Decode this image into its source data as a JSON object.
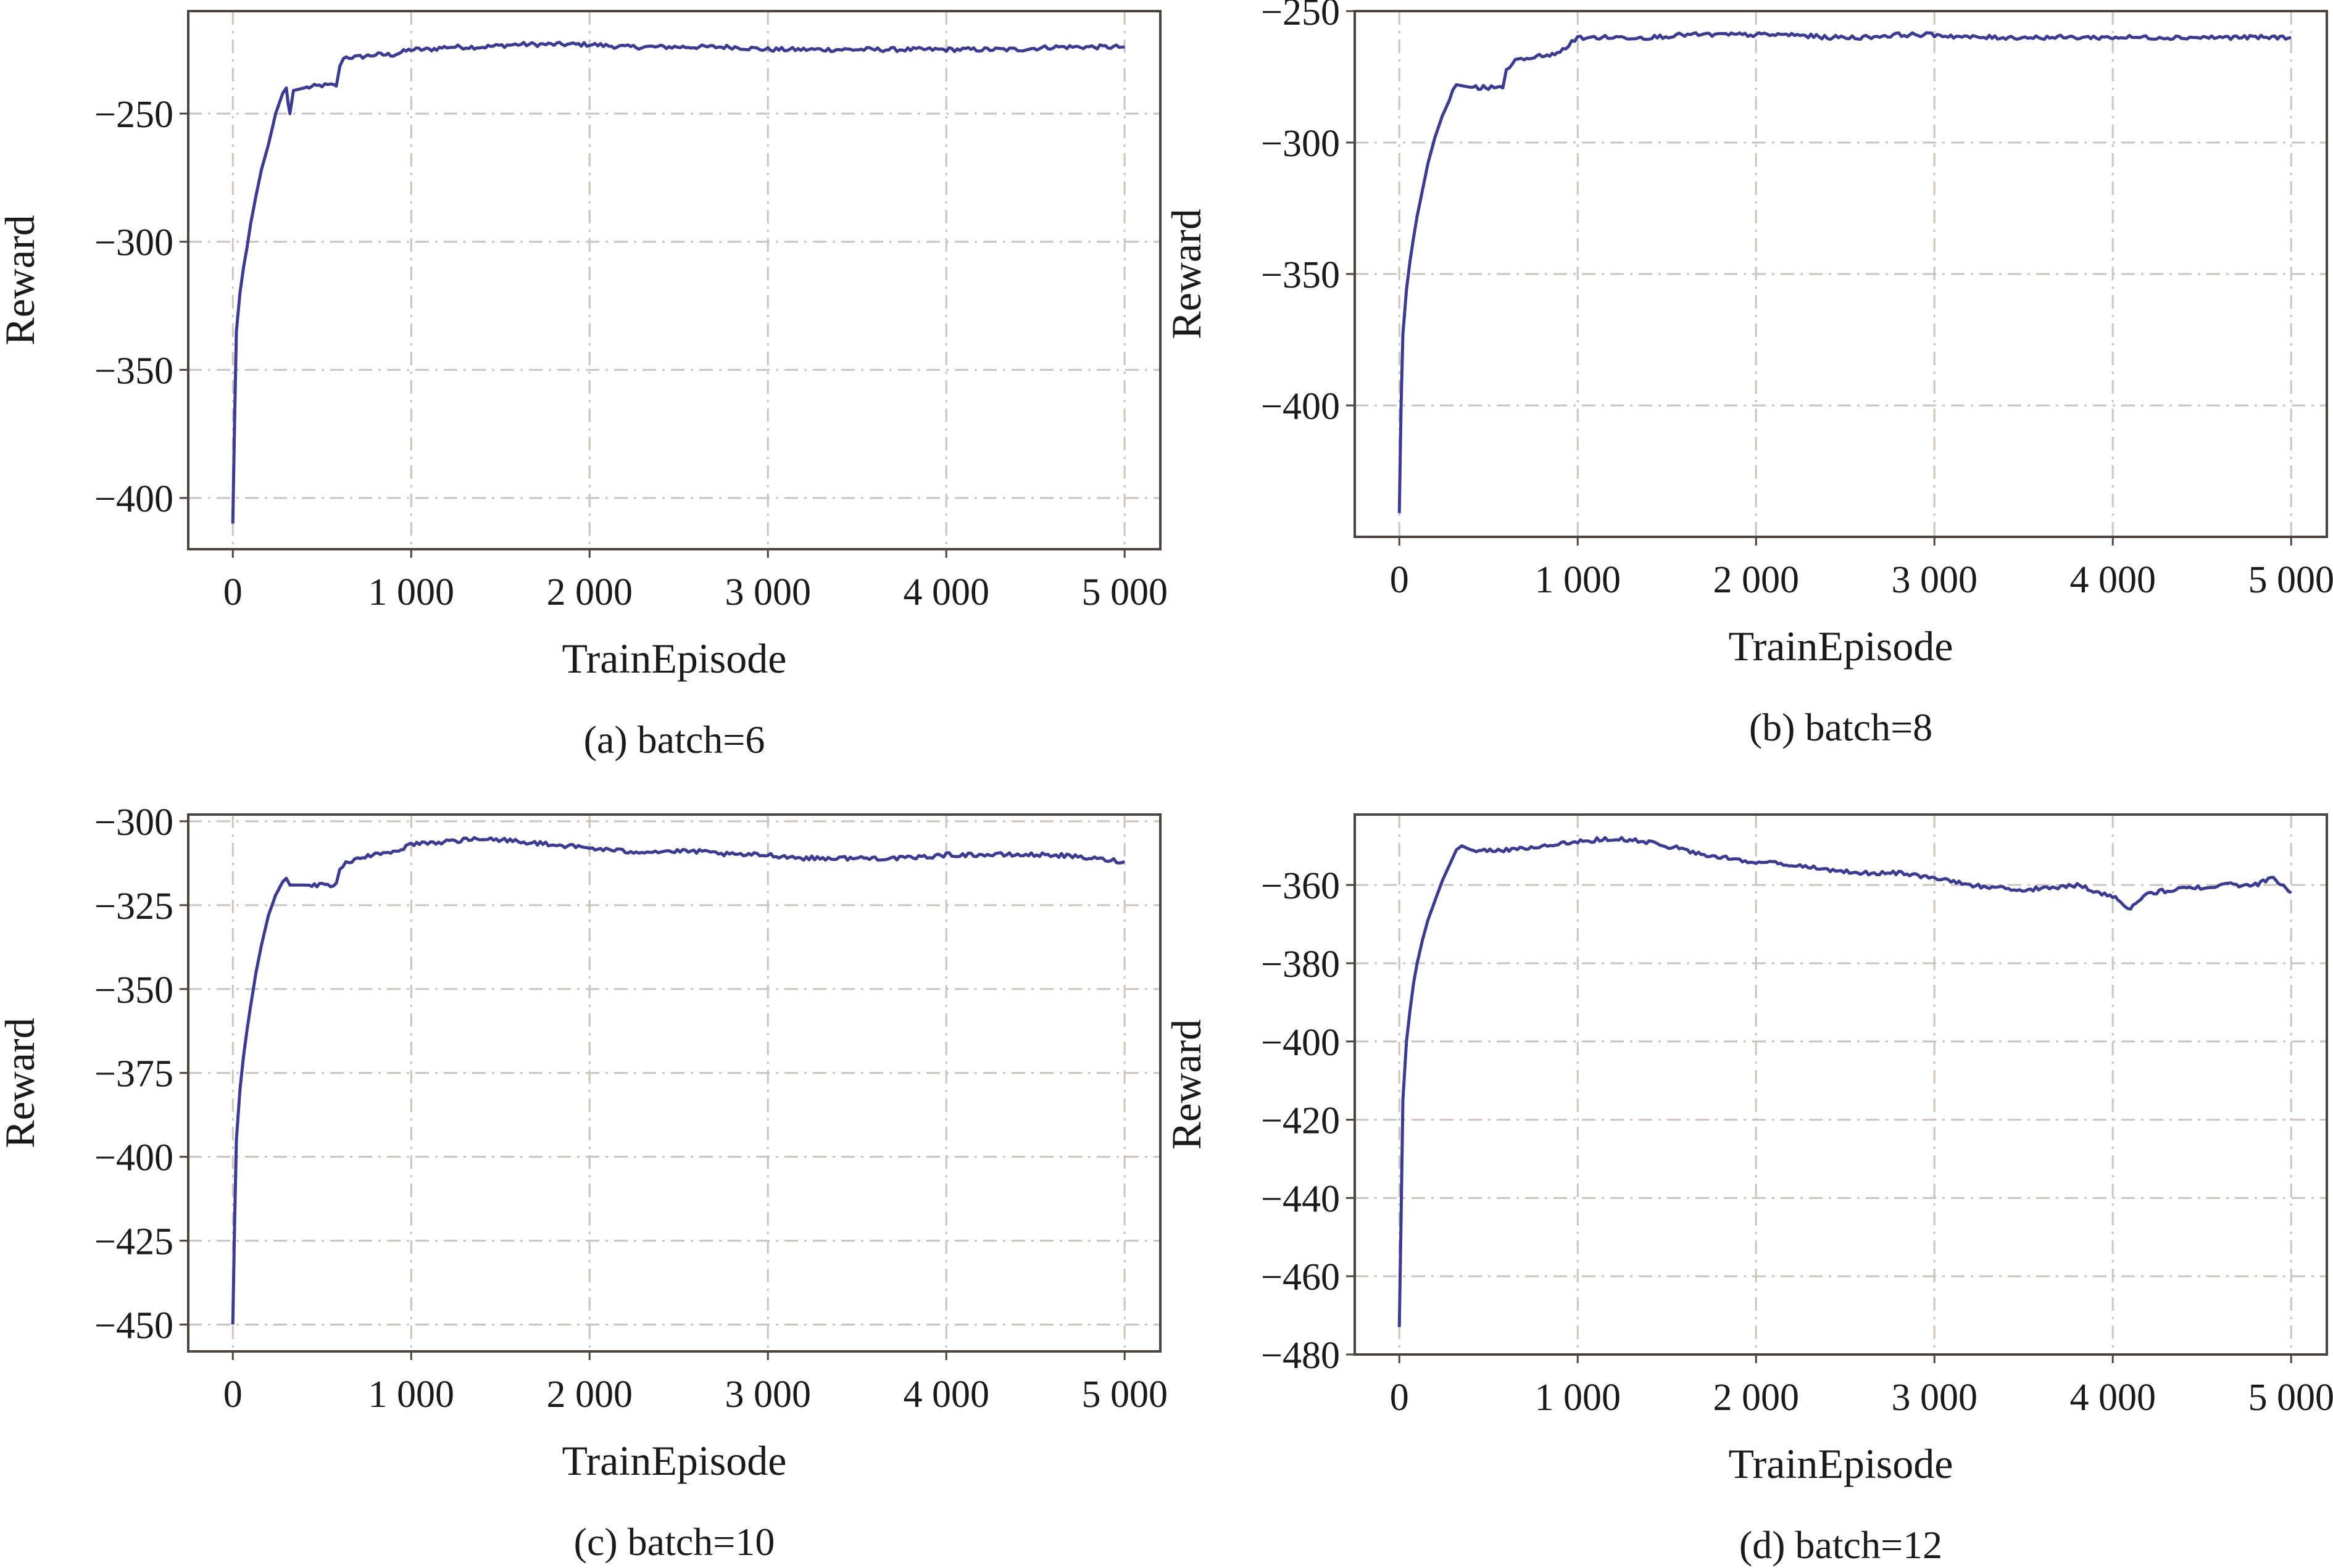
{
  "chart_data": [
    {
      "type": "line",
      "caption": "(a) batch=6",
      "xlabel": "TrainEpisode",
      "ylabel": "Reward",
      "xlim": [
        -250,
        5200
      ],
      "ylim": [
        -420,
        -210
      ],
      "xticks": [
        0,
        1000,
        2000,
        3000,
        4000,
        5000
      ],
      "xtick_labels": [
        "0",
        "1 000",
        "2 000",
        "3 000",
        "4 000",
        "5 000"
      ],
      "yticks": [
        -250,
        -300,
        -350,
        -400
      ],
      "ytick_labels": [
        "−250",
        "−300",
        "−350",
        "−400"
      ],
      "grid": true,
      "line_color": "#3b3b8f",
      "series": [
        {
          "x": [
            0,
            10,
            20,
            40,
            60,
            80,
            100,
            130,
            160,
            200,
            240,
            280,
            300,
            310,
            320,
            340,
            400,
            500,
            580,
            600,
            620,
            700,
            800,
            900,
            1000,
            1100,
            1200,
            1400,
            1600,
            1800,
            2000,
            2200,
            2400,
            2600,
            2800,
            3000,
            3200,
            3400,
            3600,
            3800,
            4000,
            4200,
            4400,
            4600,
            4800,
            5000
          ],
          "y": [
            -410,
            -370,
            -335,
            -320,
            -310,
            -302,
            -293,
            -282,
            -272,
            -262,
            -250,
            -242,
            -240,
            -246,
            -250,
            -241,
            -240,
            -239,
            -239,
            -232,
            -228,
            -228,
            -227,
            -227,
            -225,
            -225,
            -224,
            -224,
            -223,
            -223,
            -223,
            -224,
            -224,
            -224,
            -224,
            -225,
            -225,
            -225,
            -225,
            -225,
            -225,
            -225,
            -225,
            -224,
            -224,
            -224
          ]
        }
      ]
    },
    {
      "type": "line",
      "caption": "(b) batch=8",
      "xlabel": "TrainEpisode",
      "ylabel": "Reward",
      "xlim": [
        -250,
        5200
      ],
      "ylim": [
        -450,
        -250
      ],
      "xticks": [
        0,
        1000,
        2000,
        3000,
        4000,
        5000
      ],
      "xtick_labels": [
        "0",
        "1 000",
        "2 000",
        "3 000",
        "4 000",
        "5 000"
      ],
      "yticks": [
        -250,
        -300,
        -350,
        -400
      ],
      "ytick_labels": [
        "−250",
        "−300",
        "−350",
        "−400"
      ],
      "grid": true,
      "line_color": "#3b3b8f",
      "series": [
        {
          "x": [
            0,
            10,
            20,
            40,
            60,
            80,
            100,
            130,
            160,
            200,
            240,
            280,
            300,
            320,
            400,
            500,
            580,
            600,
            650,
            700,
            800,
            900,
            950,
            1000,
            1200,
            1400,
            1600,
            1800,
            2000,
            2200,
            2400,
            2600,
            2800,
            3000,
            3200,
            3400,
            3600,
            3800,
            4000,
            4200,
            4400,
            4600,
            4800,
            5000
          ],
          "y": [
            -441,
            -400,
            -373,
            -356,
            -345,
            -336,
            -328,
            -318,
            -308,
            -298,
            -290,
            -284,
            -280,
            -278,
            -279,
            -279,
            -279,
            -273,
            -269,
            -268,
            -267,
            -266,
            -263,
            -260,
            -260,
            -260,
            -259,
            -259,
            -259,
            -259,
            -260,
            -260,
            -259,
            -259,
            -260,
            -260,
            -260,
            -260,
            -260,
            -260,
            -260,
            -260,
            -260,
            -260
          ]
        }
      ]
    },
    {
      "type": "line",
      "caption": "(c) batch=10",
      "xlabel": "TrainEpisode",
      "ylabel": "Reward",
      "xlim": [
        -250,
        5200
      ],
      "ylim": [
        -458,
        -298
      ],
      "xticks": [
        0,
        1000,
        2000,
        3000,
        4000,
        5000
      ],
      "xtick_labels": [
        "0",
        "1 000",
        "2 000",
        "3 000",
        "4 000",
        "5 000"
      ],
      "yticks": [
        -300,
        -325,
        -350,
        -375,
        -400,
        -425,
        -450
      ],
      "ytick_labels": [
        "−300",
        "−325",
        "−350",
        "−375",
        "−400",
        "−425",
        "−450"
      ],
      "grid": true,
      "line_color": "#3b3b8f",
      "series": [
        {
          "x": [
            0,
            10,
            20,
            40,
            60,
            80,
            100,
            130,
            160,
            200,
            240,
            280,
            300,
            320,
            400,
            500,
            580,
            600,
            650,
            700,
            800,
            900,
            1000,
            1200,
            1400,
            1600,
            1800,
            2000,
            2200,
            2400,
            2600,
            2800,
            3000,
            3200,
            3400,
            3600,
            3800,
            4000,
            4200,
            4400,
            4600,
            4800,
            5000
          ],
          "y": [
            -450,
            -420,
            -395,
            -380,
            -370,
            -362,
            -355,
            -345,
            -337,
            -328,
            -322,
            -318,
            -317,
            -319,
            -319,
            -319,
            -319,
            -314,
            -312,
            -311,
            -310,
            -309,
            -307,
            -306,
            -305,
            -306,
            -307,
            -308,
            -309,
            -309,
            -309,
            -310,
            -310,
            -311,
            -311,
            -311,
            -311,
            -310,
            -310,
            -310,
            -310,
            -311,
            -312
          ]
        }
      ]
    },
    {
      "type": "line",
      "caption": "(d) batch=12",
      "xlabel": "TrainEpisode",
      "ylabel": "Reward",
      "xlim": [
        -250,
        5200
      ],
      "ylim": [
        -480,
        -342
      ],
      "xticks": [
        0,
        1000,
        2000,
        3000,
        4000,
        5000
      ],
      "xtick_labels": [
        "0",
        "1 000",
        "2 000",
        "3 000",
        "4 000",
        "5 000"
      ],
      "yticks": [
        -360,
        -380,
        -400,
        -420,
        -440,
        -460,
        -480
      ],
      "ytick_labels": [
        "−360",
        "−380",
        "−400",
        "−420",
        "−440",
        "−460",
        "−480"
      ],
      "grid": true,
      "line_color": "#3b3b8f",
      "series": [
        {
          "x": [
            0,
            10,
            20,
            40,
            60,
            80,
            100,
            130,
            160,
            200,
            240,
            280,
            320,
            350,
            400,
            600,
            800,
            1000,
            1200,
            1400,
            1600,
            1800,
            2000,
            2200,
            2400,
            2600,
            2800,
            3000,
            3200,
            3400,
            3600,
            3800,
            4000,
            4100,
            4200,
            4400,
            4600,
            4800,
            4900,
            5000
          ],
          "y": [
            -473,
            -445,
            -415,
            -400,
            -392,
            -385,
            -380,
            -374,
            -369,
            -364,
            -359,
            -355,
            -351,
            -350,
            -351,
            -351,
            -350,
            -349,
            -348,
            -349,
            -351,
            -353,
            -354,
            -355,
            -356,
            -357,
            -357,
            -358,
            -360,
            -361,
            -361,
            -360,
            -363,
            -366,
            -362,
            -361,
            -360,
            -360,
            -358,
            -362
          ]
        }
      ]
    }
  ]
}
